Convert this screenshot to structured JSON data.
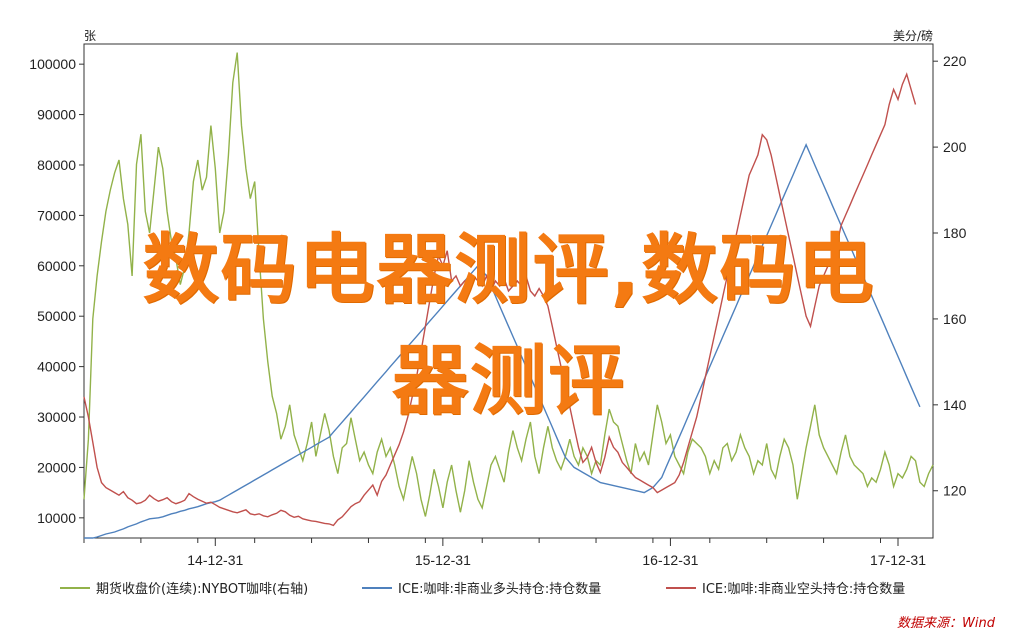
{
  "chart_data": {
    "type": "line",
    "left_axis_unit": "张",
    "right_axis_unit": "美分/磅",
    "left_axis": {
      "range": [
        6000,
        104000
      ],
      "ticks": [
        "10000",
        "20000",
        "30000",
        "40000",
        "50000",
        "60000",
        "70000",
        "80000",
        "90000",
        "100000"
      ],
      "tick_values": [
        10000,
        20000,
        30000,
        40000,
        50000,
        60000,
        70000,
        80000,
        90000,
        100000
      ]
    },
    "right_axis": {
      "range": [
        109,
        224
      ],
      "ticks": [
        "120",
        "140",
        "160",
        "180",
        "200",
        "220"
      ],
      "tick_values": [
        120,
        140,
        160,
        180,
        200,
        220
      ]
    },
    "x_ticks": [
      "14-12-31",
      "15-12-31",
      "16-12-31",
      "17-12-31"
    ],
    "x_tick_index": [
      30,
      82,
      134,
      186
    ],
    "series": [
      {
        "name": "期货收盘价(连续):NYBOT咖啡(右轴)",
        "axis": "right",
        "color": "#92b24a",
        "values": [
          118,
          132,
          160,
          170,
          178,
          185,
          190,
          194,
          197,
          188,
          182,
          170,
          196,
          203,
          185,
          180,
          190,
          200,
          195,
          185,
          178,
          174,
          168,
          172,
          180,
          192,
          197,
          190,
          193,
          205,
          195,
          180,
          185,
          198,
          215,
          222,
          205,
          195,
          188,
          192,
          175,
          160,
          150,
          142,
          138,
          132,
          135,
          140,
          133,
          130,
          127,
          131,
          136,
          128,
          133,
          138,
          134,
          128,
          124,
          130,
          131,
          137,
          132,
          127,
          129,
          126,
          124,
          129,
          132,
          128,
          130,
          126,
          121,
          118,
          123,
          128,
          124,
          118,
          114,
          119,
          125,
          121,
          116,
          122,
          126,
          120,
          115,
          120,
          127,
          122,
          118,
          116,
          121,
          126,
          128,
          125,
          122,
          129,
          134,
          130,
          127,
          132,
          136,
          128,
          124,
          130,
          135,
          130,
          127,
          125,
          128,
          132,
          128,
          126,
          130,
          128,
          124,
          127,
          126,
          133,
          139,
          136,
          135,
          131,
          127,
          124,
          131,
          127,
          129,
          126,
          133,
          140,
          136,
          131,
          133,
          128,
          126,
          124,
          129,
          132,
          131,
          130,
          128,
          124,
          127,
          125,
          130,
          131,
          127,
          129,
          133,
          130,
          128,
          124,
          127,
          126,
          131,
          125,
          123,
          128,
          132,
          130,
          126,
          118,
          124,
          130,
          135,
          140,
          133,
          130,
          128,
          126,
          124,
          129,
          133,
          128,
          126,
          125,
          124,
          121,
          123,
          122,
          125,
          129,
          126,
          121,
          124,
          123,
          125,
          128,
          127,
          122,
          121,
          124,
          126
        ]
      },
      {
        "name": "ICE:咖啡:非商业多头持仓:持仓数量",
        "axis": "left",
        "color": "#4f81bd",
        "values": [
          5000,
          5500,
          5800,
          6200,
          6500,
          6800,
          7000,
          7200,
          7500,
          7800,
          8200,
          8500,
          8800,
          9200,
          9500,
          9800,
          9900,
          10000,
          10200,
          10500,
          10800,
          11000,
          11300,
          11500,
          11800,
          12000,
          12200,
          12500,
          12800,
          13000,
          13200,
          13500,
          14000,
          14500,
          15000,
          15500,
          16000,
          16500,
          17000,
          17500,
          18000,
          18500,
          19000,
          19500,
          20000,
          20500,
          21000,
          21500,
          22000,
          22500,
          23000,
          23500,
          24000,
          24500,
          25000,
          25500,
          26000,
          27000,
          28000,
          29000,
          30000,
          31000,
          32000,
          33000,
          34000,
          35000,
          36000,
          37000,
          38000,
          39000,
          40000,
          41000,
          42000,
          43000,
          44000,
          45000,
          46000,
          47000,
          48000,
          49000,
          50000,
          51000,
          52000,
          53000,
          54000,
          55000,
          56000,
          57000,
          58000,
          59000,
          60000,
          59000,
          58000,
          56000,
          54000,
          52000,
          50000,
          48000,
          46000,
          44000,
          42000,
          40000,
          38000,
          36000,
          34000,
          32000,
          30000,
          28000,
          26000,
          24000,
          22000,
          21000,
          20000,
          19500,
          19000,
          18500,
          18000,
          17500,
          17000,
          16800,
          16600,
          16400,
          16200,
          16000,
          15800,
          15600,
          15400,
          15200,
          15000,
          15500,
          16000,
          17000,
          18000,
          20000,
          22000,
          24000,
          26000,
          28000,
          30000,
          32000,
          34000,
          36000,
          38000,
          40000,
          42000,
          44000,
          46000,
          48000,
          50000,
          52000,
          54000,
          56000,
          58000,
          60000,
          62000,
          64000,
          66000,
          68000,
          70000,
          72000,
          74000,
          76000,
          78000,
          80000,
          82000,
          84000,
          82000,
          80000,
          78000,
          76000,
          74000,
          72000,
          70000,
          68000,
          66000,
          64000,
          62000,
          60000,
          58000,
          56000,
          54000,
          52000,
          50000,
          48000,
          46000,
          44000,
          42000,
          40000,
          38000,
          36000,
          34000,
          32000
        ]
      },
      {
        "name": "ICE:咖啡:非商业空头持仓:持仓数量",
        "axis": "left",
        "color": "#c0504d",
        "values": [
          34000,
          30000,
          25000,
          20000,
          17000,
          16000,
          15500,
          15000,
          14500,
          15200,
          14000,
          13500,
          12800,
          13000,
          13500,
          14500,
          13800,
          13300,
          13600,
          14000,
          13200,
          12800,
          13100,
          13500,
          14800,
          14200,
          13700,
          13300,
          12900,
          13100,
          12600,
          12100,
          11800,
          11500,
          11200,
          11000,
          11300,
          11600,
          10800,
          10600,
          10800,
          10400,
          10200,
          10600,
          10900,
          11500,
          11200,
          10500,
          10100,
          10300,
          9800,
          9600,
          9400,
          9300,
          9100,
          8900,
          8800,
          8500,
          9600,
          10200,
          11200,
          12200,
          12800,
          13200,
          14500,
          15500,
          16500,
          14500,
          17200,
          18500,
          20500,
          22500,
          24500,
          27000,
          30000,
          34000,
          38000,
          43000,
          48000,
          53000,
          58000,
          62000,
          60000,
          63000,
          57000,
          58000,
          56000,
          57000,
          56500,
          58000,
          57000,
          56000,
          58000,
          55000,
          57000,
          56000,
          57500,
          55000,
          56000,
          57000,
          56000,
          58000,
          55000,
          54000,
          55500,
          54000,
          52000,
          48000,
          44000,
          40000,
          36000,
          32000,
          28000,
          24000,
          21000,
          22000,
          24000,
          21000,
          19000,
          22000,
          26000,
          24000,
          23000,
          21000,
          20000,
          19000,
          18000,
          17500,
          17000,
          16500,
          16000,
          15000,
          15500,
          16000,
          16500,
          17000,
          18500,
          21000,
          24000,
          27000,
          30000,
          34000,
          38000,
          42000,
          46000,
          50000,
          54000,
          58000,
          62000,
          66000,
          70000,
          74000,
          78000,
          80000,
          82000,
          86000,
          85000,
          82000,
          78000,
          74000,
          70000,
          66000,
          62000,
          58000,
          54000,
          50000,
          48000,
          52000,
          56000,
          58000,
          60000,
          62000,
          64000,
          68000,
          70000,
          72000,
          74000,
          76000,
          78000,
          80000,
          82000,
          84000,
          86000,
          88000,
          92000,
          95000,
          93000,
          96000,
          98000,
          95000,
          92000
        ]
      }
    ],
    "legend": [
      {
        "label": "期货收盘价(连续):NYBOT咖啡(右轴)",
        "color": "#92b24a"
      },
      {
        "label": "ICE:咖啡:非商业多头持仓:持仓数量",
        "color": "#4f81bd"
      },
      {
        "label": "ICE:咖啡:非商业空头持仓:持仓数量",
        "color": "#c0504d"
      }
    ],
    "legend_placement": "bottom",
    "grid": false,
    "source": "数据来源：Wind"
  },
  "overlay": {
    "line1": "数码电器测评,数码电",
    "line2": "器测评"
  }
}
